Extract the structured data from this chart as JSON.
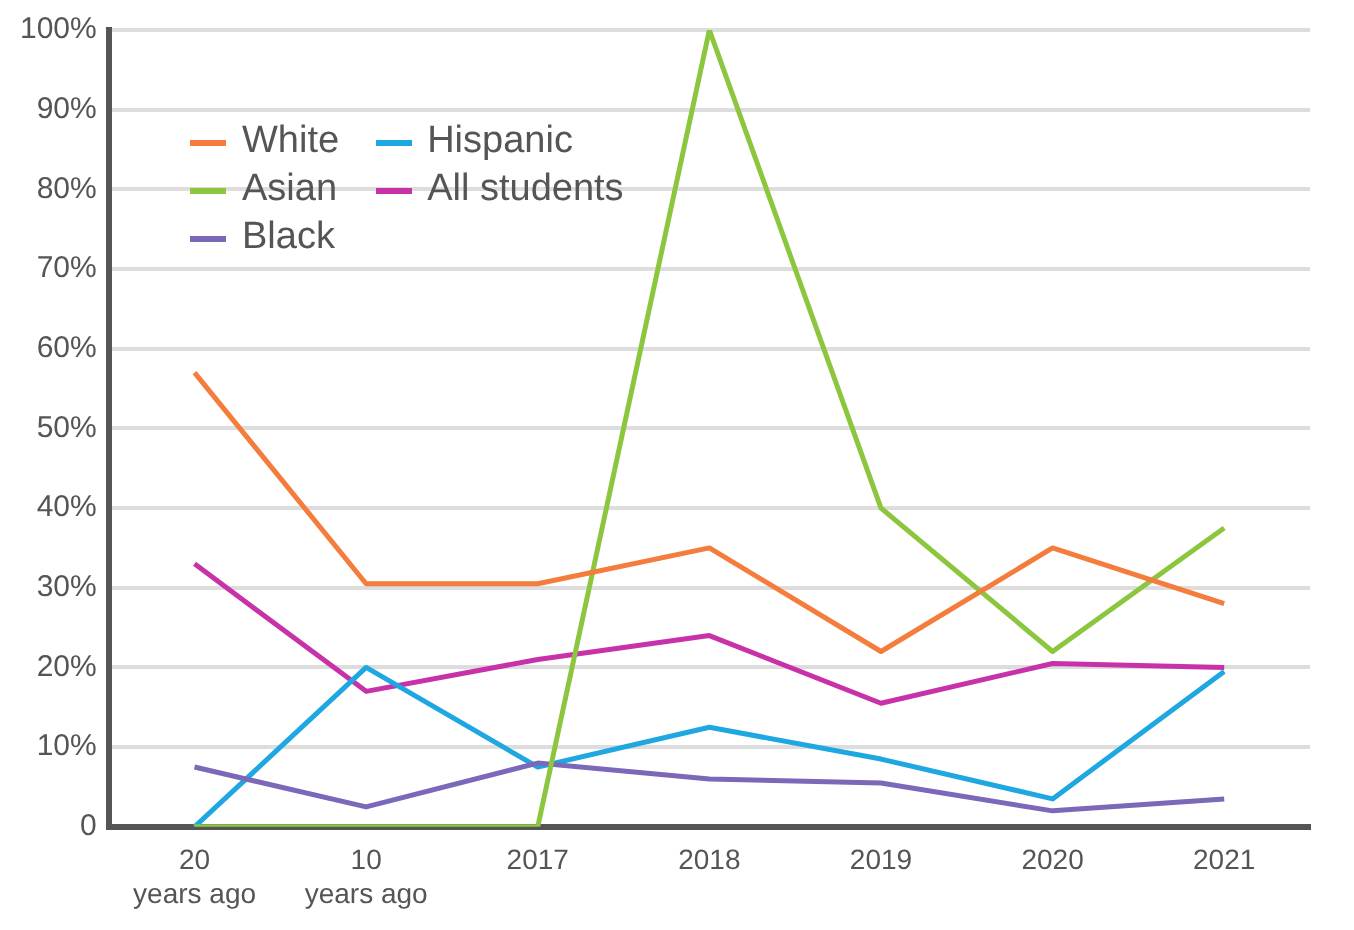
{
  "chart_data": {
    "type": "line",
    "categories": [
      "20 years ago",
      "10 years ago",
      "2017",
      "2018",
      "2019",
      "2020",
      "2021"
    ],
    "series": [
      {
        "name": "White",
        "color": "#f47c3c",
        "values": [
          57,
          30.5,
          30.5,
          35,
          22,
          35,
          28
        ]
      },
      {
        "name": "Asian",
        "color": "#8cc63f",
        "values": [
          0,
          0,
          0,
          100,
          40,
          22,
          37.5
        ]
      },
      {
        "name": "Black",
        "color": "#7b68b8",
        "values": [
          7.5,
          2.5,
          8,
          6,
          5.5,
          2,
          3.5
        ]
      },
      {
        "name": "Hispanic",
        "color": "#1ea7e1",
        "values": [
          0,
          20,
          7.5,
          12.5,
          8.5,
          3.5,
          19.5
        ]
      },
      {
        "name": "All students",
        "color": "#c832a8",
        "values": [
          33,
          17,
          21,
          24,
          15.5,
          20.5,
          20
        ]
      }
    ],
    "ylim": [
      0,
      100
    ],
    "yticks": [
      0,
      {
        "value": 10,
        "label": "10%"
      },
      {
        "value": 20,
        "label": "20%"
      },
      {
        "value": 30,
        "label": "30%"
      },
      {
        "value": 40,
        "label": "40%"
      },
      {
        "value": 50,
        "label": "50%"
      },
      {
        "value": 60,
        "label": "60%"
      },
      {
        "value": 70,
        "label": "70%"
      },
      {
        "value": 80,
        "label": "80%"
      },
      {
        "value": 90,
        "label": "90%"
      },
      {
        "value": 100,
        "label": "100%"
      }
    ],
    "grid": "y",
    "legend": "top left",
    "marker": "none",
    "line_style": "solid"
  }
}
